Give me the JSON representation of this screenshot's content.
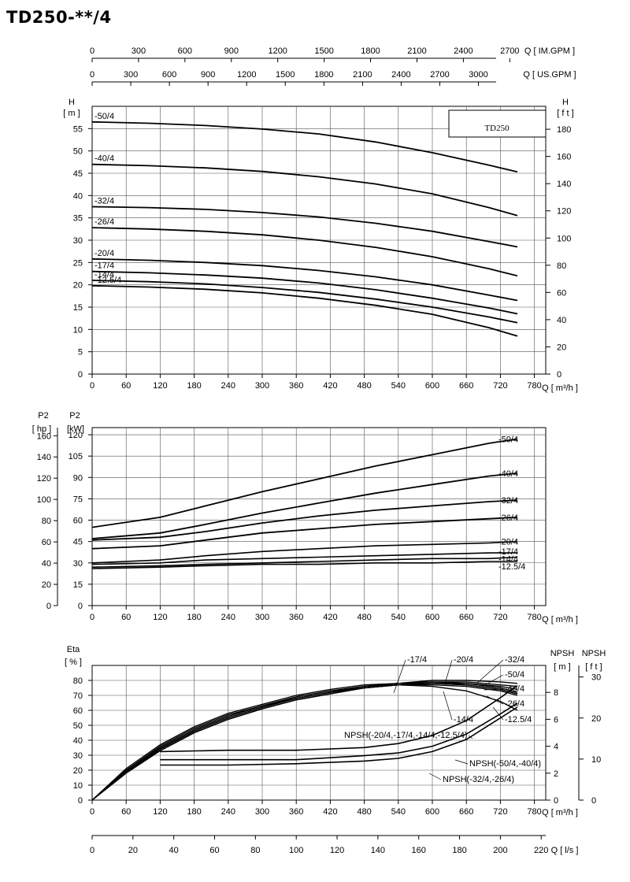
{
  "title": "TD250-**/4",
  "model_box": "TD250",
  "x_unit": "Q [ m³/h ]",
  "top_axes": [
    {
      "unit": "Q [ IM.GPM ]",
      "ticks": [
        "0",
        "300",
        "600",
        "900",
        "1200",
        "1500",
        "1800",
        "2100",
        "2400",
        "2700"
      ]
    },
    {
      "unit": "Q [ US.GPM ]",
      "ticks": [
        "0",
        "300",
        "600",
        "900",
        "1200",
        "1500",
        "1800",
        "2100",
        "2400",
        "2700",
        "3000"
      ]
    }
  ],
  "bottom_axis": {
    "unit": "Q [ l/s ]",
    "ticks": [
      "0",
      "20",
      "40",
      "60",
      "80",
      "100",
      "120",
      "140",
      "160",
      "180",
      "200",
      "220"
    ]
  },
  "head_units": {
    "left_label": "H",
    "left_unit": "[ m ]",
    "right_label": "H",
    "right_unit": "[ f t ]"
  },
  "power_units": {
    "hp_label": "P2",
    "hp_unit": "[ hp ]",
    "kw_label": "P2",
    "kw_unit": "[kW]"
  },
  "eff_units": {
    "label": "Eta",
    "unit": "[ % ]",
    "npsh_m_label": "NPSH",
    "npsh_m_unit": "[ m ]",
    "npsh_ft_label": "NPSH",
    "npsh_ft_unit": "[ f t ]"
  },
  "chart_data": [
    {
      "type": "line",
      "title": "",
      "xlabel": "Q [ m³/h ]",
      "ylabel": "H [ m ]",
      "xlim": [
        0,
        800
      ],
      "ylim": [
        0,
        60
      ],
      "x_ticks": [
        0,
        60,
        120,
        180,
        240,
        300,
        360,
        420,
        480,
        540,
        600,
        660,
        720,
        780
      ],
      "y_ticks": [
        0,
        5,
        10,
        15,
        20,
        25,
        30,
        35,
        40,
        45,
        50,
        55
      ],
      "secondary_ylabel": "H [ f t ]",
      "secondary_ticks": [
        0,
        20,
        40,
        60,
        80,
        100,
        120,
        140,
        160,
        180
      ],
      "grid": true,
      "x": [
        0,
        100,
        200,
        300,
        400,
        500,
        600,
        700,
        750
      ],
      "series": [
        {
          "name": "-50/4",
          "values": [
            56.5,
            56.2,
            55.7,
            54.9,
            53.8,
            52.0,
            49.6,
            46.8,
            45.3
          ]
        },
        {
          "name": "-40/4",
          "values": [
            47.0,
            46.7,
            46.2,
            45.4,
            44.2,
            42.6,
            40.4,
            37.3,
            35.5
          ]
        },
        {
          "name": "-32/4",
          "values": [
            37.5,
            37.3,
            36.9,
            36.2,
            35.2,
            33.8,
            32.0,
            29.7,
            28.5
          ]
        },
        {
          "name": "-26/4",
          "values": [
            32.8,
            32.5,
            32.0,
            31.2,
            30.0,
            28.4,
            26.3,
            23.6,
            22.0
          ]
        },
        {
          "name": "-20/4",
          "values": [
            25.8,
            25.5,
            25.0,
            24.3,
            23.2,
            21.8,
            20.0,
            17.7,
            16.5
          ]
        },
        {
          "name": "-17/4",
          "values": [
            23.0,
            22.7,
            22.2,
            21.5,
            20.4,
            18.9,
            17.0,
            14.8,
            13.5
          ]
        },
        {
          "name": "-14/4",
          "values": [
            21.0,
            20.7,
            20.2,
            19.4,
            18.3,
            16.8,
            15.0,
            12.8,
            11.5
          ]
        },
        {
          "name": "-12.5/4",
          "values": [
            19.8,
            19.5,
            19.0,
            18.2,
            17.0,
            15.4,
            13.4,
            10.4,
            8.5
          ]
        }
      ]
    },
    {
      "type": "line",
      "title": "",
      "xlabel": "Q [ m³/h ]",
      "ylabel": "P2 [kW]",
      "xlim": [
        0,
        800
      ],
      "ylim": [
        0,
        125
      ],
      "x_ticks": [
        0,
        60,
        120,
        180,
        240,
        300,
        360,
        420,
        480,
        540,
        600,
        660,
        720,
        780
      ],
      "y_ticks": [
        0,
        15,
        30,
        45,
        60,
        75,
        90,
        105,
        120
      ],
      "secondary_ylabel": "P2 [ hp ]",
      "secondary_ticks": [
        0,
        20,
        40,
        60,
        80,
        100,
        120,
        140,
        160
      ],
      "grid": true,
      "x": [
        0,
        120,
        200,
        300,
        400,
        500,
        600,
        700,
        750
      ],
      "series": [
        {
          "name": "-50/4",
          "values": [
            55,
            62,
            70,
            80,
            89,
            98,
            106,
            114,
            117
          ]
        },
        {
          "name": "-40/4",
          "values": [
            47,
            51,
            57,
            65,
            72,
            79,
            85,
            91,
            93
          ]
        },
        {
          "name": "-32/4",
          "values": [
            46,
            48,
            52,
            58,
            63,
            67,
            70,
            73,
            74
          ]
        },
        {
          "name": "-26/4",
          "values": [
            40,
            42,
            46,
            51,
            54,
            57,
            59,
            61,
            62
          ]
        },
        {
          "name": "-20/4",
          "values": [
            30,
            32,
            35,
            38,
            40,
            42,
            43,
            44,
            45
          ]
        },
        {
          "name": "-17/4",
          "values": [
            29,
            30,
            32,
            33,
            34,
            35,
            36,
            37,
            37
          ]
        },
        {
          "name": "-14/4",
          "values": [
            27,
            28,
            29,
            30,
            31,
            32,
            33,
            33,
            34
          ]
        },
        {
          "name": "-12.5/4",
          "values": [
            26,
            27,
            28,
            29,
            29,
            30,
            30,
            31,
            31
          ]
        }
      ]
    },
    {
      "type": "line",
      "title": "",
      "xlabel": "Q [ m³/h ]",
      "ylabel": "Eta [ % ]",
      "xlim": [
        0,
        800
      ],
      "ylim": [
        0,
        90
      ],
      "x_ticks": [
        0,
        60,
        120,
        180,
        240,
        300,
        360,
        420,
        480,
        540,
        600,
        660,
        720,
        780
      ],
      "y_ticks": [
        0,
        10,
        20,
        30,
        40,
        50,
        60,
        70,
        80
      ],
      "npsh_m_ticks": [
        0,
        2,
        4,
        6,
        8
      ],
      "npsh_ft_ticks": [
        0,
        10,
        20,
        30
      ],
      "grid": true,
      "x": [
        0,
        60,
        120,
        180,
        240,
        300,
        360,
        420,
        480,
        540,
        600,
        660,
        720,
        750
      ],
      "series": [
        {
          "name": "-50/4",
          "values": [
            0,
            19,
            34,
            46,
            55,
            62,
            68,
            72,
            76,
            78,
            79,
            79,
            77,
            76
          ]
        },
        {
          "name": "-40/4",
          "values": [
            0,
            19,
            33,
            45,
            54,
            61,
            67,
            71,
            75,
            77,
            78,
            78,
            76,
            74
          ]
        },
        {
          "name": "-32/4",
          "values": [
            0,
            19,
            34,
            46,
            55,
            62,
            68,
            72,
            76,
            78,
            80,
            80,
            79,
            78
          ]
        },
        {
          "name": "-26/4",
          "values": [
            0,
            18,
            33,
            45,
            54,
            61,
            67,
            71,
            75,
            77,
            78,
            77,
            74,
            71
          ]
        },
        {
          "name": "-20/4",
          "values": [
            0,
            20,
            35,
            47,
            56,
            63,
            69,
            73,
            76,
            78,
            79,
            78,
            75,
            72
          ]
        },
        {
          "name": "-17/4",
          "values": [
            0,
            21,
            37,
            49,
            58,
            64,
            70,
            74,
            77,
            78,
            78,
            77,
            74,
            71
          ]
        },
        {
          "name": "-14/4",
          "values": [
            0,
            20,
            35,
            47,
            56,
            63,
            68,
            72,
            75,
            77,
            77,
            76,
            73,
            70
          ]
        },
        {
          "name": "-12.5/4",
          "values": [
            0,
            20,
            36,
            48,
            57,
            63,
            69,
            73,
            76,
            77,
            76,
            73,
            66,
            60
          ]
        }
      ],
      "npsh_x": [
        120,
        240,
        360,
        480,
        540,
        600,
        660,
        720,
        750
      ],
      "npsh_series": [
        {
          "name": "NPSH(-20/4,-17/4,-14/4,-12.5/4)",
          "values": [
            3.6,
            3.7,
            3.7,
            3.9,
            4.2,
            4.8,
            5.9,
            7.6,
            8.5
          ]
        },
        {
          "name": "NPSH(-50/4,-40/4)",
          "values": [
            3.0,
            3.0,
            3.0,
            3.3,
            3.5,
            4.0,
            4.9,
            6.4,
            7.2
          ]
        },
        {
          "name": "NPSH(-32/4,-26/4)",
          "values": [
            2.6,
            2.6,
            2.7,
            2.9,
            3.1,
            3.6,
            4.5,
            6.1,
            6.9
          ]
        }
      ]
    }
  ]
}
